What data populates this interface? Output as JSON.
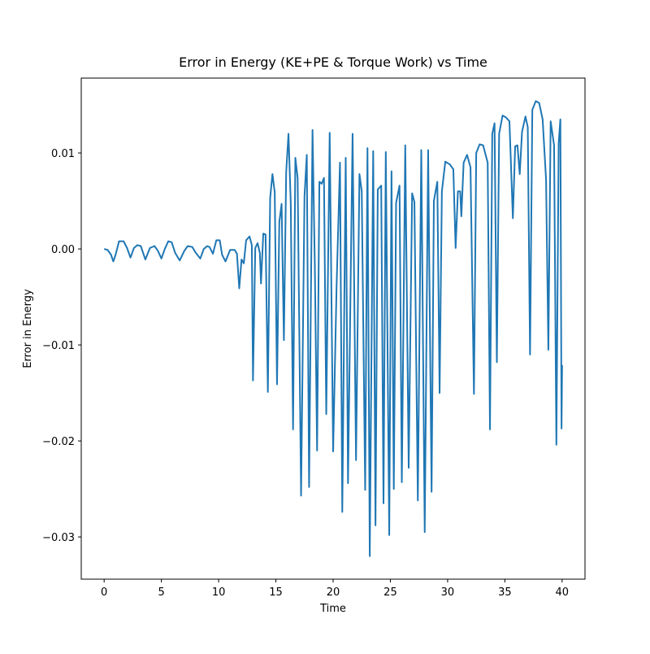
{
  "chart_data": {
    "type": "line",
    "title": "Error in Energy (KE+PE & Torque Work) vs Time",
    "x_label": "Time",
    "y_label": "Error in Energy",
    "color": "#1f77b4",
    "xlim": [
      -2,
      42
    ],
    "ylim": [
      -0.0344,
      0.0178
    ],
    "xticks": [
      0,
      5,
      10,
      15,
      20,
      25,
      30,
      35,
      40
    ],
    "yticks": [
      {
        "value": -0.03,
        "label": "−0.03"
      },
      {
        "value": -0.02,
        "label": "−0.02"
      },
      {
        "value": -0.01,
        "label": "−0.01"
      },
      {
        "value": 0,
        "label": "0.00"
      },
      0.01
    ],
    "x": [
      0,
      0.3,
      0.6,
      0.8,
      1.0,
      1.3,
      1.7,
      2.0,
      2.3,
      2.6,
      2.9,
      3.2,
      3.6,
      4.0,
      4.4,
      4.7,
      5.0,
      5.3,
      5.6,
      5.9,
      6.2,
      6.6,
      7.0,
      7.3,
      7.7,
      8.0,
      8.4,
      8.7,
      9.0,
      9.2,
      9.5,
      9.8,
      10.1,
      10.3,
      10.6,
      11.0,
      11.4,
      11.6,
      11.8,
      12.0,
      12.2,
      12.4,
      12.7,
      12.9,
      13.0,
      13.2,
      13.4,
      13.6,
      13.7,
      13.9,
      14.1,
      14.3,
      14.5,
      14.7,
      14.9,
      15.1,
      15.3,
      15.5,
      15.7,
      15.9,
      16.1,
      16.3,
      16.5,
      16.7,
      16.9,
      17.2,
      17.5,
      17.7,
      17.9,
      18.2,
      18.4,
      18.6,
      18.8,
      19.0,
      19.2,
      19.4,
      19.7,
      20.0,
      20.3,
      20.6,
      20.8,
      21.1,
      21.3,
      21.7,
      22.0,
      22.3,
      22.5,
      22.8,
      23.0,
      23.2,
      23.5,
      23.7,
      23.9,
      24.2,
      24.4,
      24.6,
      24.9,
      25.1,
      25.3,
      25.5,
      25.8,
      26.0,
      26.3,
      26.6,
      26.9,
      27.1,
      27.4,
      27.7,
      28.0,
      28.3,
      28.6,
      28.8,
      29.1,
      29.3,
      29.5,
      29.8,
      30.2,
      30.5,
      30.7,
      30.9,
      31.1,
      31.2,
      31.4,
      31.7,
      32.0,
      32.3,
      32.5,
      32.8,
      33.1,
      33.5,
      33.7,
      33.9,
      34.1,
      34.3,
      34.5,
      34.8,
      35.1,
      35.4,
      35.7,
      35.9,
      36.1,
      36.3,
      36.5,
      36.8,
      37.0,
      37.2,
      37.4,
      37.7,
      38.0,
      38.3,
      38.6,
      38.8,
      39.0,
      39.3,
      39.5,
      39.7,
      39.85,
      39.95,
      40.0
    ],
    "values": [
      0,
      -0.0001,
      -0.0006,
      -0.0013,
      -0.0006,
      0.0008,
      0.0008,
      0.0001,
      -0.0009,
      0.0001,
      0.0004,
      0.0003,
      -0.0011,
      0.0001,
      0.0003,
      -0.0002,
      -0.001,
      0,
      0.0008,
      0.0007,
      -0.0004,
      -0.0012,
      -0.0002,
      0.0003,
      0.0002,
      -0.0004,
      -0.001,
      0,
      0.0003,
      0.0002,
      -0.0005,
      0.0009,
      0.0009,
      -0.0006,
      -0.0013,
      -0.0001,
      -0.0001,
      -0.0005,
      -0.0041,
      -0.0011,
      -0.0015,
      0.0009,
      0.0013,
      0.0004,
      -0.0137,
      0.0001,
      0.0006,
      -0.0004,
      -0.0036,
      0.0016,
      0.0015,
      -0.0149,
      0.0053,
      0.0078,
      0.0059,
      -0.0141,
      0.0028,
      0.0047,
      -0.0095,
      0.008,
      0.012,
      0.0048,
      -0.0188,
      0.0095,
      0.0074,
      -0.0257,
      0.0055,
      0.0098,
      -0.0248,
      0.0124,
      -0.0015,
      -0.021,
      0.007,
      0.0068,
      0.0074,
      -0.0172,
      0.0121,
      -0.0211,
      -0.004,
      0.009,
      -0.0274,
      0.0095,
      -0.0244,
      0.012,
      -0.022,
      0.0078,
      0.006,
      -0.0251,
      0.0105,
      -0.032,
      0.0102,
      -0.0288,
      0.0062,
      0.0066,
      -0.0265,
      0.0101,
      -0.0298,
      0.0081,
      -0.025,
      0.0048,
      0.0066,
      -0.0243,
      0.0108,
      -0.0228,
      0.0058,
      0.0049,
      -0.0262,
      0.0103,
      -0.0295,
      0.0103,
      -0.0253,
      0.005,
      0.007,
      -0.015,
      0.006,
      0.0091,
      0.0088,
      0.0083,
      0.0001,
      0.006,
      0.006,
      0.0034,
      0.009,
      0.0098,
      0.0085,
      -0.0151,
      0.01,
      0.0109,
      0.0108,
      0.009,
      -0.0188,
      0.012,
      0.0131,
      -0.0118,
      0.012,
      0.0139,
      0.0137,
      0.0133,
      0.0032,
      0.0107,
      0.0108,
      0.0078,
      0.0122,
      0.0138,
      0.0127,
      -0.011,
      0.0145,
      0.0154,
      0.0152,
      0.0135,
      0.0072,
      -0.0105,
      0.0133,
      0.0108,
      -0.0204,
      0.011,
      0.0135,
      -0.0187,
      -0.0121
    ]
  }
}
